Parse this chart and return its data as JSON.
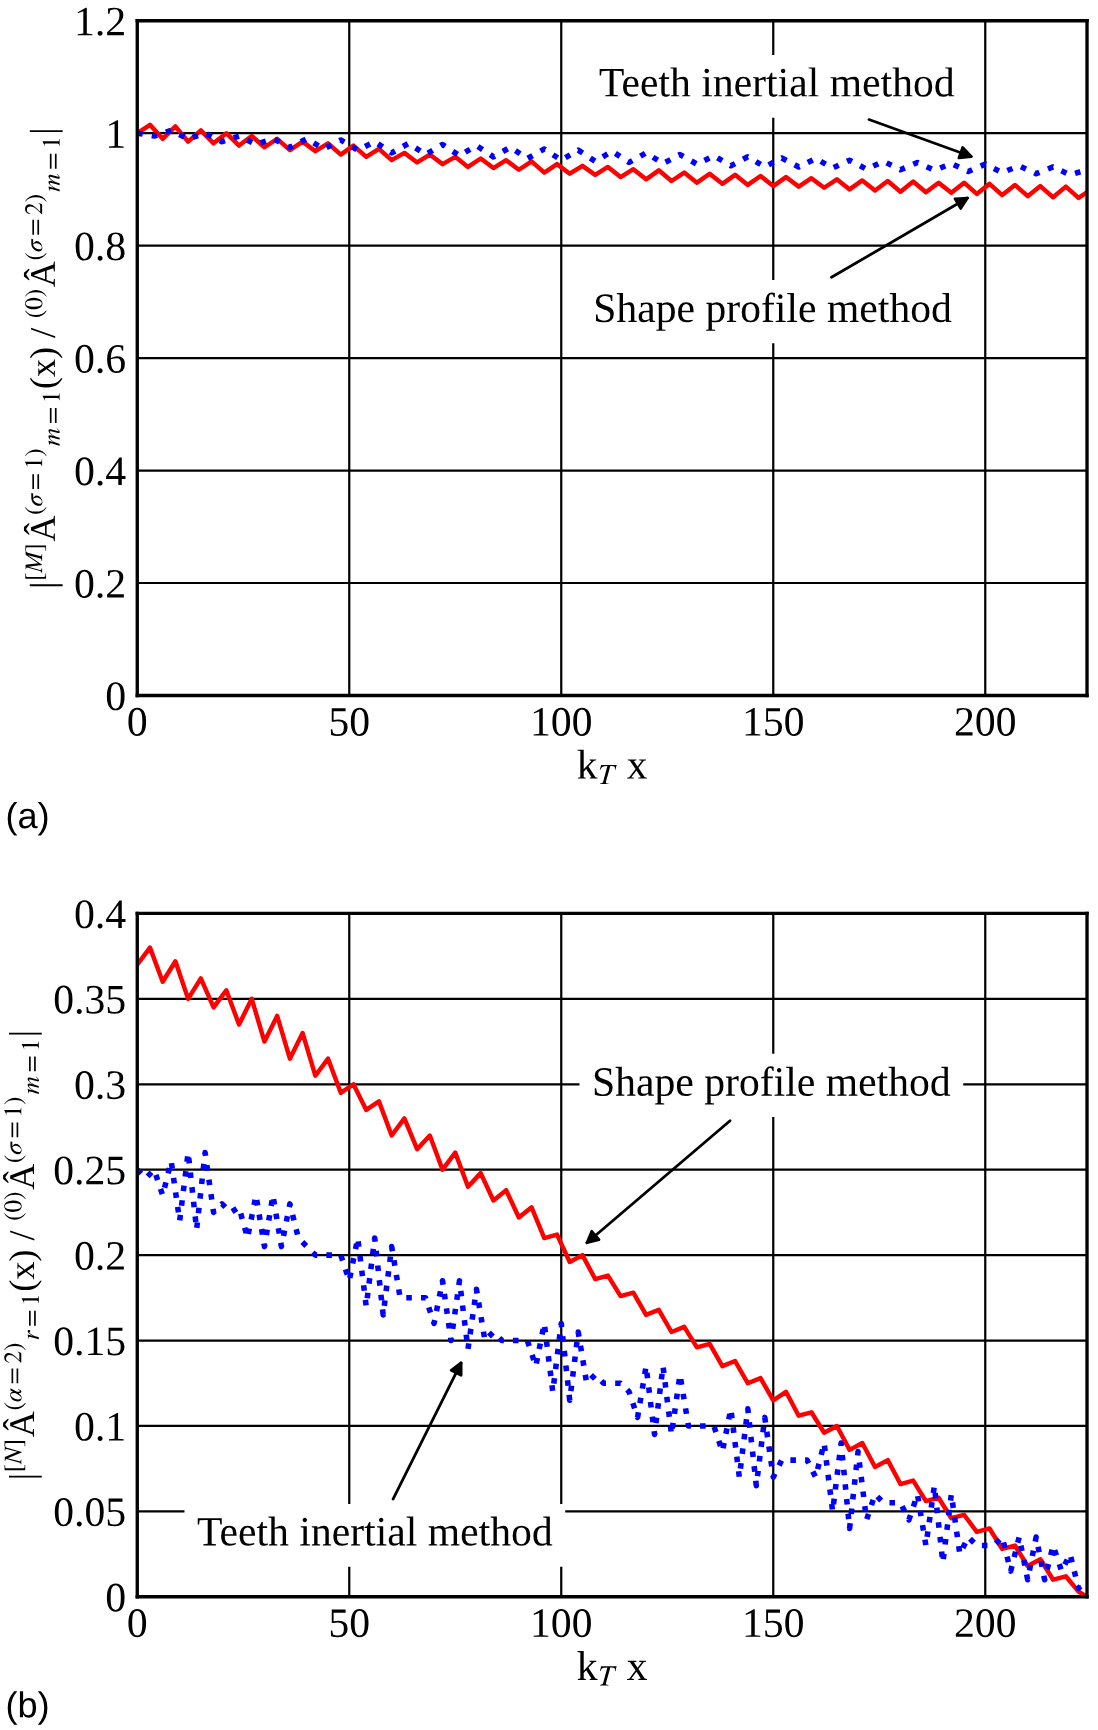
{
  "chart_data": [
    {
      "type": "line",
      "xlabel": "k$_{T}$ x",
      "ylabel": "|$^{[M]}$Â$^{(σ=1)}$$_{m=1}$(x) / $^{(0)}$Â$^{(σ=2)}$$_{m=1}$|",
      "xlim": [
        0,
        224
      ],
      "xticks": [
        0,
        50,
        100,
        150,
        200
      ],
      "ylim": [
        0,
        1.2
      ],
      "yticks": [
        0,
        0.2,
        0.4,
        0.6,
        0.8,
        1,
        1.2
      ],
      "grid": true,
      "legend": false,
      "annotations": [
        {
          "text": "Teeth inertial method",
          "x": 198,
          "y": 0.955
        },
        {
          "text": "Shape profile method",
          "x": 197,
          "y": 0.89
        },
        "(a)"
      ],
      "series": [
        {
          "color": "#ff0000",
          "line_style": "solid",
          "x": [
            0,
            3,
            6,
            9,
            12,
            15,
            18,
            21,
            24,
            27,
            30,
            33,
            36,
            39,
            42,
            45,
            48,
            51,
            54,
            57,
            60,
            63,
            66,
            69,
            72,
            75,
            78,
            81,
            84,
            87,
            90,
            93,
            96,
            99,
            102,
            105,
            108,
            111,
            114,
            117,
            120,
            123,
            126,
            129,
            132,
            135,
            138,
            141,
            144,
            147,
            150,
            153,
            156,
            159,
            162,
            165,
            168,
            171,
            174,
            177,
            180,
            183,
            186,
            189,
            192,
            195,
            198,
            201,
            204,
            207,
            210,
            213,
            216,
            219,
            222,
            224
          ],
          "values": [
            1.0,
            1.015,
            0.99,
            1.012,
            0.985,
            1.005,
            0.982,
            1.0,
            0.978,
            0.995,
            0.975,
            0.99,
            0.97,
            0.985,
            0.968,
            0.982,
            0.962,
            0.978,
            0.958,
            0.972,
            0.952,
            0.965,
            0.948,
            0.962,
            0.945,
            0.958,
            0.94,
            0.955,
            0.938,
            0.952,
            0.935,
            0.95,
            0.93,
            0.945,
            0.928,
            0.942,
            0.926,
            0.94,
            0.922,
            0.936,
            0.918,
            0.934,
            0.915,
            0.93,
            0.912,
            0.928,
            0.91,
            0.926,
            0.908,
            0.924,
            0.906,
            0.922,
            0.905,
            0.92,
            0.903,
            0.918,
            0.9,
            0.916,
            0.898,
            0.915,
            0.896,
            0.914,
            0.895,
            0.912,
            0.894,
            0.912,
            0.892,
            0.91,
            0.89,
            0.908,
            0.888,
            0.906,
            0.886,
            0.905,
            0.885,
            0.895
          ]
        },
        {
          "color": "#0000ff",
          "line_style": "dotted",
          "x": [
            0,
            4,
            8,
            12,
            16,
            20,
            24,
            28,
            32,
            36,
            40,
            44,
            48,
            52,
            56,
            60,
            64,
            68,
            72,
            76,
            80,
            84,
            88,
            92,
            96,
            100,
            104,
            108,
            112,
            116,
            120,
            124,
            128,
            132,
            136,
            140,
            144,
            148,
            152,
            156,
            160,
            164,
            168,
            172,
            176,
            180,
            184,
            188,
            192,
            196,
            200,
            204,
            208,
            212,
            216,
            220,
            224
          ],
          "values": [
            1.0,
            0.995,
            1.005,
            0.99,
            1.0,
            0.985,
            0.995,
            0.98,
            0.99,
            0.975,
            0.99,
            0.972,
            0.988,
            0.97,
            0.985,
            0.965,
            0.982,
            0.962,
            0.98,
            0.96,
            0.978,
            0.958,
            0.975,
            0.955,
            0.972,
            0.952,
            0.97,
            0.95,
            0.968,
            0.948,
            0.965,
            0.946,
            0.962,
            0.945,
            0.96,
            0.942,
            0.958,
            0.94,
            0.956,
            0.94,
            0.955,
            0.938,
            0.952,
            0.936,
            0.95,
            0.935,
            0.948,
            0.934,
            0.946,
            0.932,
            0.945,
            0.93,
            0.942,
            0.928,
            0.94,
            0.926,
            0.935
          ]
        }
      ]
    },
    {
      "type": "line",
      "xlabel": "k$_{T}$ x",
      "ylabel": "|$^{[N]}$Â$^{(α=2)}$$_{r=1}$(x) / $^{(0)}$Â$^{(σ=1)}$$_{m=1}$|",
      "xlim": [
        0,
        224
      ],
      "xticks": [
        0,
        50,
        100,
        150,
        200
      ],
      "ylim": [
        0,
        0.4
      ],
      "yticks": [
        0,
        0.05,
        0.1,
        0.15,
        0.2,
        0.25,
        0.3,
        0.35,
        0.4
      ],
      "grid": true,
      "legend": false,
      "annotations": [
        {
          "text": "Shape profile method",
          "x": 105,
          "y": 0.205
        },
        {
          "text": "Teeth inertial method",
          "x": 77,
          "y": 0.14
        },
        "(b)"
      ],
      "series": [
        {
          "color": "#ff0000",
          "line_style": "solid",
          "x": [
            0,
            3,
            6,
            9,
            12,
            15,
            18,
            21,
            24,
            27,
            30,
            33,
            36,
            39,
            42,
            45,
            48,
            51,
            54,
            57,
            60,
            63,
            66,
            69,
            72,
            75,
            78,
            81,
            84,
            87,
            90,
            93,
            96,
            99,
            102,
            105,
            108,
            111,
            114,
            117,
            120,
            123,
            126,
            129,
            132,
            135,
            138,
            141,
            144,
            147,
            150,
            153,
            156,
            159,
            162,
            165,
            168,
            171,
            174,
            177,
            180,
            183,
            186,
            189,
            192,
            195,
            198,
            201,
            204,
            207,
            210,
            213,
            216,
            219,
            222,
            224
          ],
          "values": [
            0.37,
            0.38,
            0.36,
            0.372,
            0.35,
            0.362,
            0.345,
            0.355,
            0.335,
            0.35,
            0.325,
            0.34,
            0.315,
            0.33,
            0.305,
            0.315,
            0.295,
            0.3,
            0.285,
            0.29,
            0.27,
            0.28,
            0.262,
            0.27,
            0.25,
            0.26,
            0.24,
            0.248,
            0.232,
            0.238,
            0.222,
            0.228,
            0.21,
            0.212,
            0.196,
            0.2,
            0.186,
            0.188,
            0.176,
            0.178,
            0.165,
            0.168,
            0.155,
            0.158,
            0.146,
            0.148,
            0.135,
            0.138,
            0.125,
            0.128,
            0.115,
            0.12,
            0.106,
            0.108,
            0.096,
            0.1,
            0.086,
            0.09,
            0.076,
            0.08,
            0.066,
            0.068,
            0.056,
            0.058,
            0.046,
            0.048,
            0.038,
            0.04,
            0.028,
            0.03,
            0.018,
            0.022,
            0.01,
            0.012,
            0.003,
            0
          ]
        },
        {
          "color": "#0000ff",
          "line_style": "dotted",
          "x": [
            0,
            2,
            4,
            6,
            8,
            10,
            12,
            14,
            16,
            18,
            20,
            22,
            24,
            26,
            28,
            30,
            32,
            34,
            36,
            38,
            40,
            42,
            44,
            46,
            48,
            50,
            52,
            54,
            56,
            58,
            60,
            62,
            64,
            66,
            68,
            70,
            72,
            74,
            76,
            78,
            80,
            82,
            84,
            86,
            88,
            90,
            92,
            94,
            96,
            98,
            100,
            102,
            104,
            106,
            108,
            110,
            112,
            114,
            116,
            118,
            120,
            122,
            124,
            126,
            128,
            130,
            132,
            134,
            136,
            138,
            140,
            142,
            144,
            146,
            148,
            150,
            152,
            154,
            156,
            158,
            160,
            162,
            164,
            166,
            168,
            170,
            172,
            174,
            176,
            178,
            180,
            182,
            184,
            186,
            188,
            190,
            192,
            194,
            196,
            198,
            200,
            202,
            204,
            206,
            208,
            210,
            212,
            214,
            216,
            218,
            220,
            222,
            224
          ],
          "values": [
            0.25,
            0.245,
            0.25,
            0.235,
            0.255,
            0.22,
            0.26,
            0.215,
            0.26,
            0.225,
            0.23,
            0.225,
            0.228,
            0.21,
            0.235,
            0.205,
            0.235,
            0.205,
            0.23,
            0.21,
            0.205,
            0.2,
            0.2,
            0.2,
            0.2,
            0.185,
            0.21,
            0.17,
            0.21,
            0.165,
            0.205,
            0.175,
            0.175,
            0.175,
            0.175,
            0.16,
            0.185,
            0.15,
            0.185,
            0.145,
            0.18,
            0.15,
            0.155,
            0.15,
            0.15,
            0.15,
            0.15,
            0.135,
            0.16,
            0.12,
            0.16,
            0.115,
            0.155,
            0.125,
            0.13,
            0.125,
            0.125,
            0.125,
            0.12,
            0.105,
            0.135,
            0.095,
            0.135,
            0.095,
            0.13,
            0.1,
            0.1,
            0.1,
            0.1,
            0.085,
            0.11,
            0.07,
            0.11,
            0.065,
            0.105,
            0.07,
            0.08,
            0.08,
            0.08,
            0.08,
            0.07,
            0.09,
            0.05,
            0.09,
            0.04,
            0.085,
            0.045,
            0.06,
            0.055,
            0.055,
            0.055,
            0.045,
            0.06,
            0.03,
            0.065,
            0.02,
            0.06,
            0.025,
            0.035,
            0.03,
            0.03,
            0.03,
            0.035,
            0.015,
            0.035,
            0.01,
            0.035,
            0.01,
            0.03,
            0.015,
            0.025,
            0.005,
            0.01
          ]
        }
      ]
    }
  ]
}
